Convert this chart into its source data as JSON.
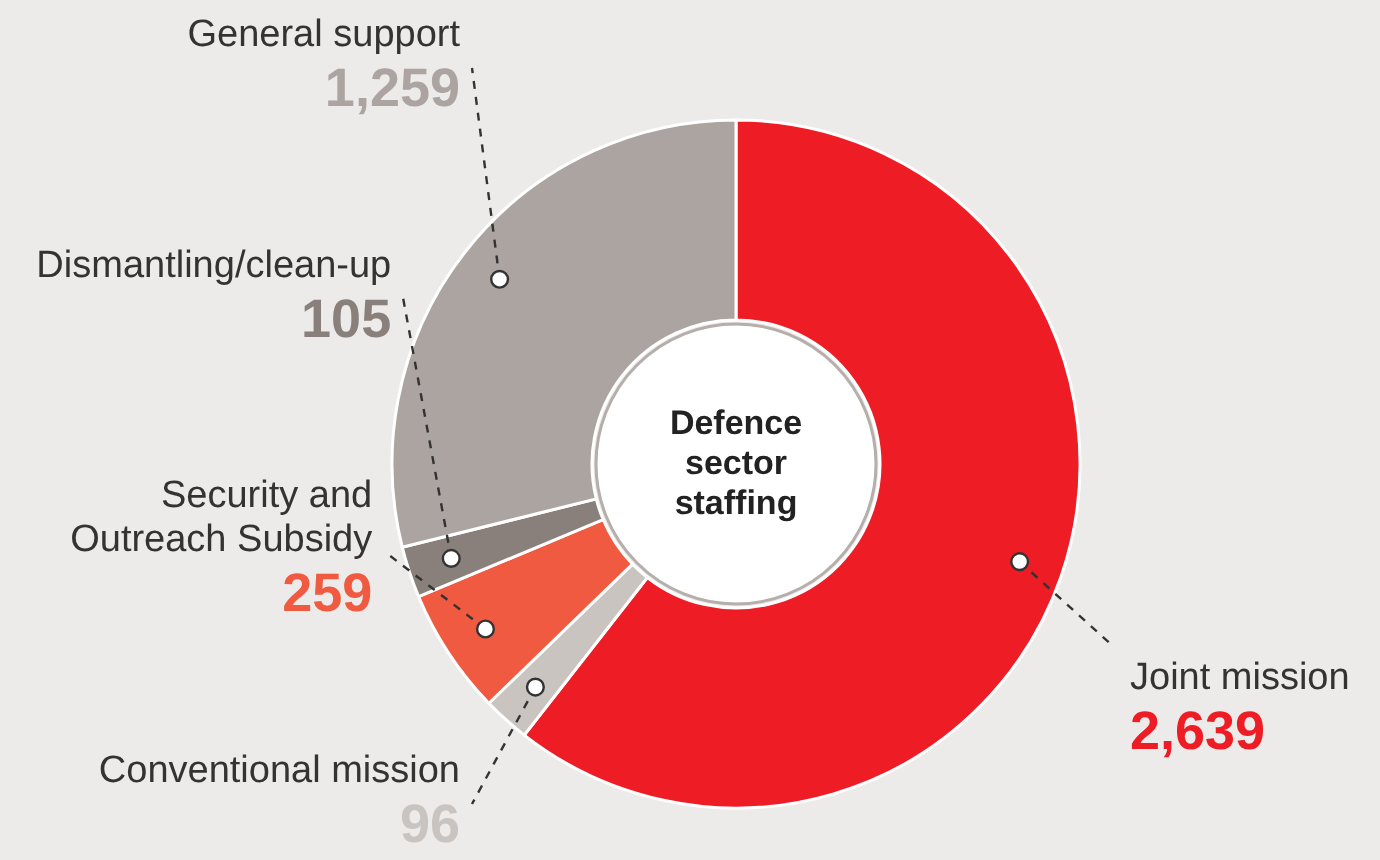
{
  "chart_data": {
    "type": "donut",
    "title": "Defence sector staffing",
    "categories": [
      "Joint mission",
      "Conventional mission",
      "Security and Outreach Subsidy",
      "Dismantling/clean-up",
      "General support"
    ],
    "values": [
      2639,
      96,
      259,
      105,
      1259
    ],
    "colors": [
      "#ee1c25",
      "#c9c4c0",
      "#f05a40",
      "#8a807b",
      "#aca4a0"
    ],
    "value_labels": [
      "2,639",
      "96",
      "259",
      "105",
      "1,259"
    ]
  }
}
